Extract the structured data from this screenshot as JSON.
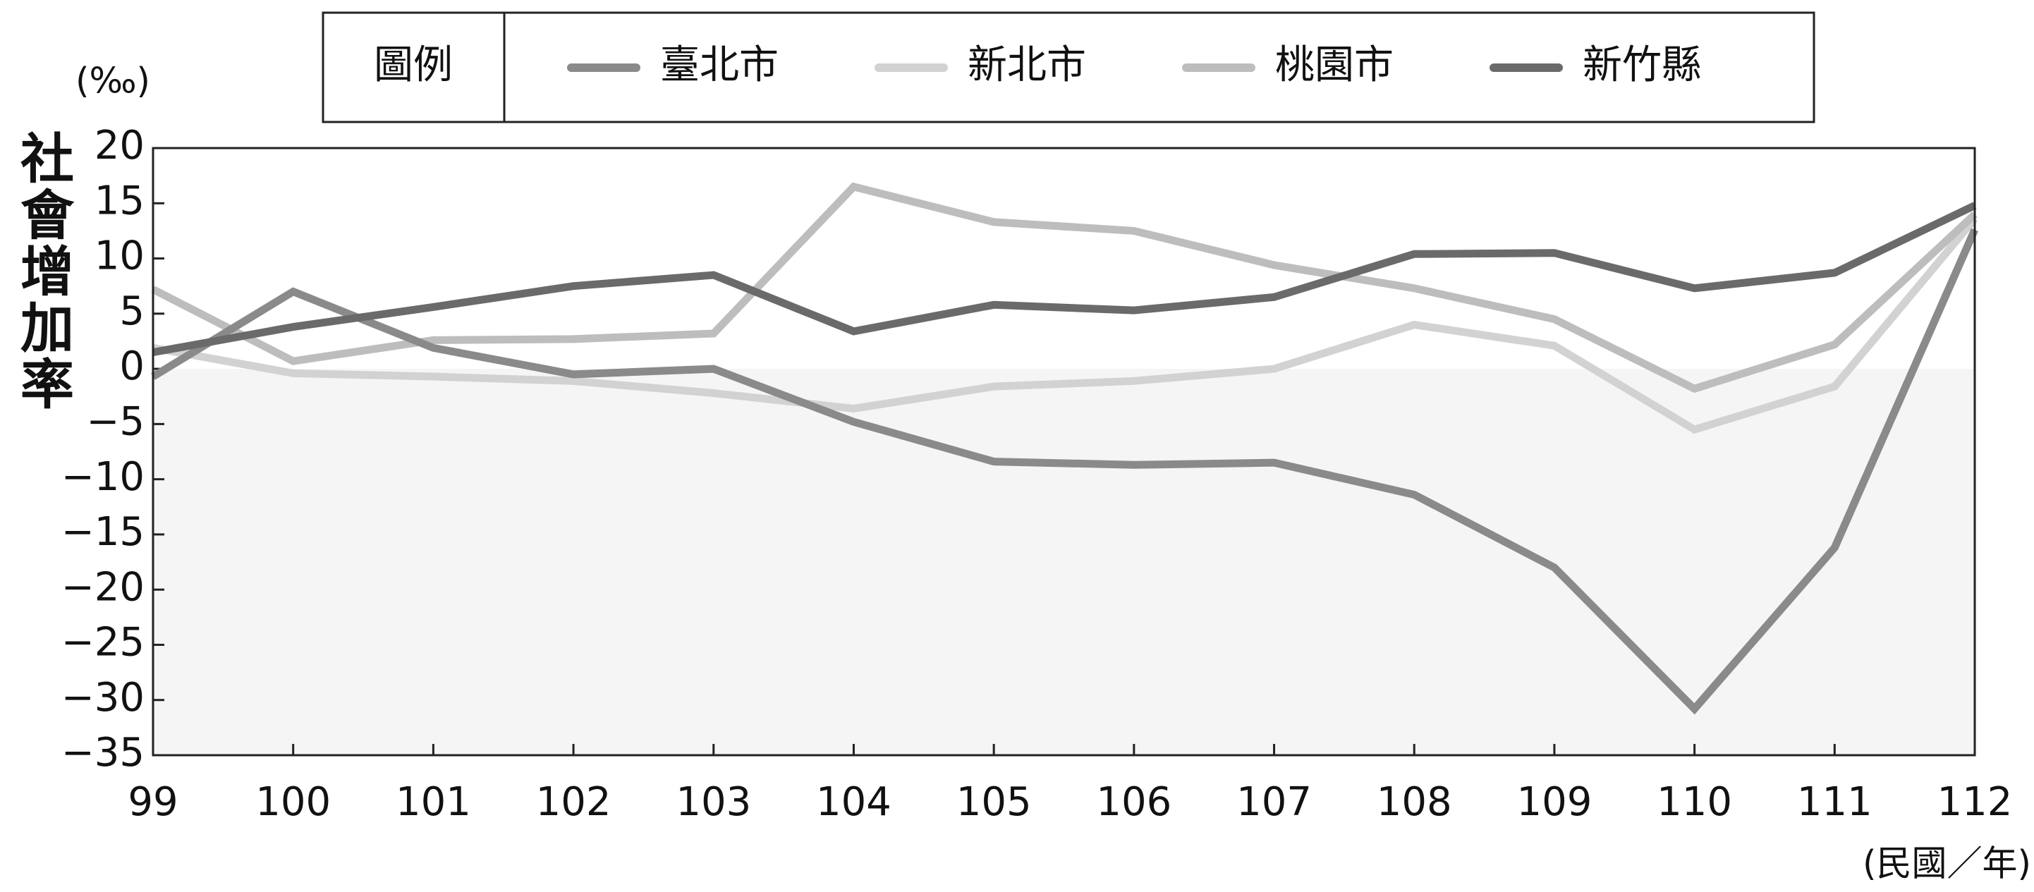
{
  "chart_data": {
    "type": "line",
    "y_label": "社會增加率",
    "y_unit": "(‰)",
    "x_unit": "(民國／年)",
    "legend_title": "圖例",
    "categories": [
      "99",
      "100",
      "101",
      "102",
      "103",
      "104",
      "105",
      "106",
      "107",
      "108",
      "109",
      "110",
      "111",
      "112"
    ],
    "series": [
      {
        "name": "臺北市",
        "color": "#8a8a8a",
        "values": [
          -0.7,
          7.0,
          1.9,
          -0.5,
          0,
          -4.8,
          -8.4,
          -8.7,
          -8.5,
          -11.4,
          -18.0,
          -30.8,
          -16.2,
          12.6
        ]
      },
      {
        "name": "新北市",
        "color": "#d2d2d2",
        "values": [
          1.9,
          -0.4,
          -0.7,
          -1.1,
          -2.2,
          -3.6,
          -1.6,
          -1.1,
          0,
          4.0,
          2.1,
          -5.5,
          -1.6,
          13.6
        ]
      },
      {
        "name": "桃園市",
        "color": "#bdbdbd",
        "values": [
          7.2,
          0.7,
          2.6,
          2.7,
          3.2,
          16.5,
          13.3,
          12.5,
          9.4,
          7.3,
          4.5,
          -1.8,
          2.2,
          14.0
        ]
      },
      {
        "name": "新竹縣",
        "color": "#6a6a6a",
        "values": [
          1.5,
          3.8,
          5.6,
          7.5,
          8.5,
          3.4,
          5.8,
          5.3,
          6.5,
          10.4,
          10.5,
          7.3,
          8.7,
          14.8
        ]
      }
    ],
    "ylim": [
      -35,
      20
    ],
    "yticks": [
      20,
      15,
      10,
      5,
      0,
      {
        "value": -5,
        "label": "−5"
      },
      {
        "value": -10,
        "label": "−10"
      },
      {
        "value": -15,
        "label": "−15"
      },
      {
        "value": -20,
        "label": "−20"
      },
      {
        "value": -25,
        "label": "−25"
      },
      {
        "value": -30,
        "label": "−30"
      },
      {
        "value": -35,
        "label": "−35"
      }
    ]
  }
}
